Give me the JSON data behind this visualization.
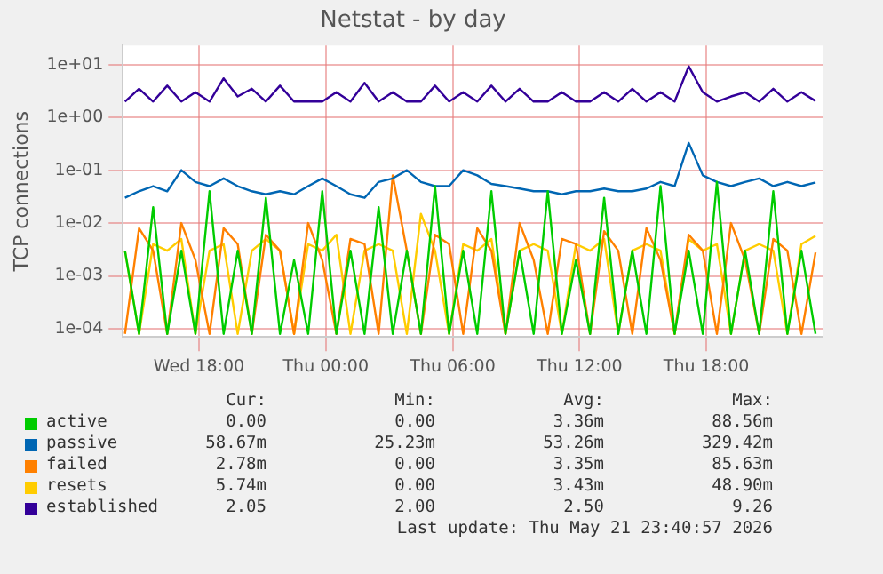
{
  "chart_data": {
    "type": "line",
    "title": "Netstat - by day",
    "ylabel": "TCP connections",
    "x": [
      "2026-05-20T14:30",
      "2026-05-20T15:10",
      "2026-05-20T15:50",
      "2026-05-20T16:30",
      "2026-05-20T17:10",
      "2026-05-20T17:50",
      "2026-05-20T18:30",
      "2026-05-20T19:10",
      "2026-05-20T19:50",
      "2026-05-20T20:30",
      "2026-05-20T21:10",
      "2026-05-20T21:50",
      "2026-05-20T22:30",
      "2026-05-20T23:10",
      "2026-05-20T23:50",
      "2026-05-21T00:30",
      "2026-05-21T01:10",
      "2026-05-21T01:50",
      "2026-05-21T02:30",
      "2026-05-21T03:10",
      "2026-05-21T03:50",
      "2026-05-21T04:30",
      "2026-05-21T05:10",
      "2026-05-21T05:50",
      "2026-05-21T06:30",
      "2026-05-21T07:10",
      "2026-05-21T07:50",
      "2026-05-21T08:30",
      "2026-05-21T09:10",
      "2026-05-21T09:50",
      "2026-05-21T10:30",
      "2026-05-21T11:10",
      "2026-05-21T11:50",
      "2026-05-21T12:30",
      "2026-05-21T13:10",
      "2026-05-21T13:50",
      "2026-05-21T14:30",
      "2026-05-21T15:10",
      "2026-05-21T15:50",
      "2026-05-21T16:30",
      "2026-05-21T17:10",
      "2026-05-21T17:50",
      "2026-05-21T18:30",
      "2026-05-21T19:10",
      "2026-05-21T19:50",
      "2026-05-21T20:30",
      "2026-05-21T21:10",
      "2026-05-21T21:50",
      "2026-05-21T22:30",
      "2026-05-21T23:10"
    ],
    "series": [
      {
        "name": "active",
        "color": "#00cc00",
        "values": [
          0.003,
          8e-05,
          0.02,
          8e-05,
          0.003,
          8e-05,
          0.04,
          8e-05,
          0.003,
          8e-05,
          0.03,
          8e-05,
          0.002,
          8e-05,
          0.04,
          8e-05,
          0.003,
          8e-05,
          0.02,
          8e-05,
          0.003,
          8e-05,
          0.05,
          8e-05,
          0.003,
          8e-05,
          0.04,
          8e-05,
          0.003,
          8e-05,
          0.04,
          8e-05,
          0.002,
          8e-05,
          0.03,
          8e-05,
          0.003,
          8e-05,
          0.05,
          8e-05,
          0.003,
          8e-05,
          0.06,
          8e-05,
          0.003,
          8e-05,
          0.04,
          8e-05,
          0.003,
          8e-05
        ]
      },
      {
        "name": "passive",
        "color": "#0066b3",
        "values": [
          0.03,
          0.04,
          0.05,
          0.04,
          0.1,
          0.06,
          0.05,
          0.07,
          0.05,
          0.04,
          0.035,
          0.04,
          0.035,
          0.05,
          0.07,
          0.05,
          0.035,
          0.03,
          0.06,
          0.07,
          0.1,
          0.06,
          0.05,
          0.05,
          0.1,
          0.08,
          0.055,
          0.05,
          0.045,
          0.04,
          0.04,
          0.035,
          0.04,
          0.04,
          0.045,
          0.04,
          0.04,
          0.045,
          0.06,
          0.05,
          0.329,
          0.08,
          0.06,
          0.05,
          0.06,
          0.07,
          0.05,
          0.06,
          0.05,
          0.0587
        ]
      },
      {
        "name": "failed",
        "color": "#ff8000",
        "values": [
          8e-05,
          0.008,
          0.003,
          8e-05,
          0.01,
          0.002,
          8e-05,
          0.008,
          0.004,
          8e-05,
          0.006,
          0.003,
          8e-05,
          0.01,
          0.002,
          8e-05,
          0.005,
          0.004,
          8e-05,
          0.08,
          0.003,
          8e-05,
          0.006,
          0.004,
          8e-05,
          0.008,
          0.003,
          8e-05,
          0.01,
          0.002,
          8e-05,
          0.005,
          0.004,
          8e-05,
          0.007,
          0.003,
          8e-05,
          0.008,
          0.002,
          8e-05,
          0.006,
          0.003,
          8e-05,
          0.01,
          0.002,
          8e-05,
          0.005,
          0.003,
          8e-05,
          0.00278
        ]
      },
      {
        "name": "resets",
        "color": "#ffcc00",
        "values": [
          0.003,
          8e-05,
          0.004,
          0.003,
          0.005,
          8e-05,
          0.003,
          0.004,
          8e-05,
          0.003,
          0.005,
          0.003,
          8e-05,
          0.004,
          0.003,
          0.006,
          8e-05,
          0.003,
          0.004,
          0.003,
          8e-05,
          0.015,
          0.003,
          8e-05,
          0.004,
          0.003,
          0.005,
          8e-05,
          0.003,
          0.004,
          0.003,
          8e-05,
          0.004,
          0.003,
          0.005,
          8e-05,
          0.003,
          0.004,
          0.003,
          8e-05,
          0.005,
          0.003,
          0.004,
          8e-05,
          0.003,
          0.004,
          0.003,
          8e-05,
          0.004,
          0.00574
        ]
      },
      {
        "name": "established",
        "color": "#330099",
        "values": [
          2,
          3.5,
          2,
          4,
          2,
          3,
          2,
          5.5,
          2.5,
          3.5,
          2,
          4,
          2,
          2,
          2,
          3,
          2,
          4.5,
          2,
          3,
          2,
          2,
          4,
          2,
          3,
          2,
          4,
          2,
          3.5,
          2,
          2,
          3,
          2,
          2,
          3,
          2,
          3.5,
          2,
          3,
          2,
          9.26,
          3,
          2,
          2.5,
          3,
          2,
          3.5,
          2,
          3,
          2.05
        ]
      }
    ],
    "log": true,
    "xlim": [
      "2026-05-20T14:24",
      "2026-05-21T23:30"
    ],
    "ylim": [
      7.5e-05,
      23
    ],
    "xticks": [
      {
        "value": "2026-05-20T18:00",
        "label": "Wed 18:00"
      },
      {
        "value": "2026-05-21T00:00",
        "label": "Thu 00:00"
      },
      {
        "value": "2026-05-21T06:00",
        "label": "Thu 06:00"
      },
      {
        "value": "2026-05-21T12:00",
        "label": "Thu 12:00"
      },
      {
        "value": "2026-05-21T18:00",
        "label": "Thu 18:00"
      }
    ],
    "yticks": [
      {
        "value": 0.0001,
        "label": "1e-04"
      },
      {
        "value": 0.001,
        "label": "1e-03"
      },
      {
        "value": 0.01,
        "label": "1e-02"
      },
      {
        "value": 0.1,
        "label": "1e-01"
      },
      {
        "value": 1,
        "label": "1e+00"
      },
      {
        "value": 10,
        "label": "1e+01"
      }
    ],
    "grid": true,
    "legend": "bottom",
    "marker": "none",
    "line_style": "solid",
    "annotations": [
      "Cur:",
      "Min:",
      "Avg:",
      "Max:",
      "0.00",
      "0.00",
      "3.36m",
      "88.56m",
      "58.67m",
      "25.23m",
      "53.26m",
      "329.42m",
      "2.78m",
      "0.00",
      "3.35m",
      "85.63m",
      "5.74m",
      "0.00",
      "3.43m",
      "48.90m",
      "2.05",
      "2.00",
      "2.50",
      "9.26",
      "Last update: Thu May 21 23:40:57 2026"
    ]
  }
}
